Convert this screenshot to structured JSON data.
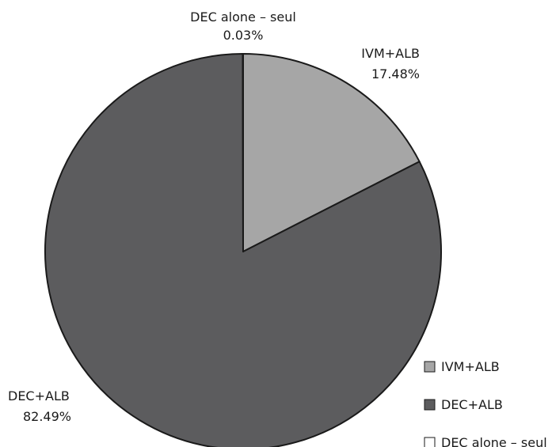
{
  "chart_data": {
    "type": "pie",
    "slices": [
      {
        "name": "IVM+ALB",
        "value": 17.48,
        "label_value": "17.48%",
        "color": "#a6a6a6"
      },
      {
        "name": "DEC+ALB",
        "value": 82.49,
        "label_value": "82.49%",
        "color": "#5c5c5e"
      },
      {
        "name": "DEC alone – seul",
        "value": 0.03,
        "label_value": "0.03%",
        "color": "#ffffff"
      }
    ],
    "legend": {
      "position": "bottom-right",
      "entries": [
        "IVM+ALB",
        "DEC+ALB",
        "DEC alone – seul"
      ]
    },
    "start_angle_deg": 0,
    "direction": "clockwise",
    "outline_color": "#1a1a1a"
  }
}
